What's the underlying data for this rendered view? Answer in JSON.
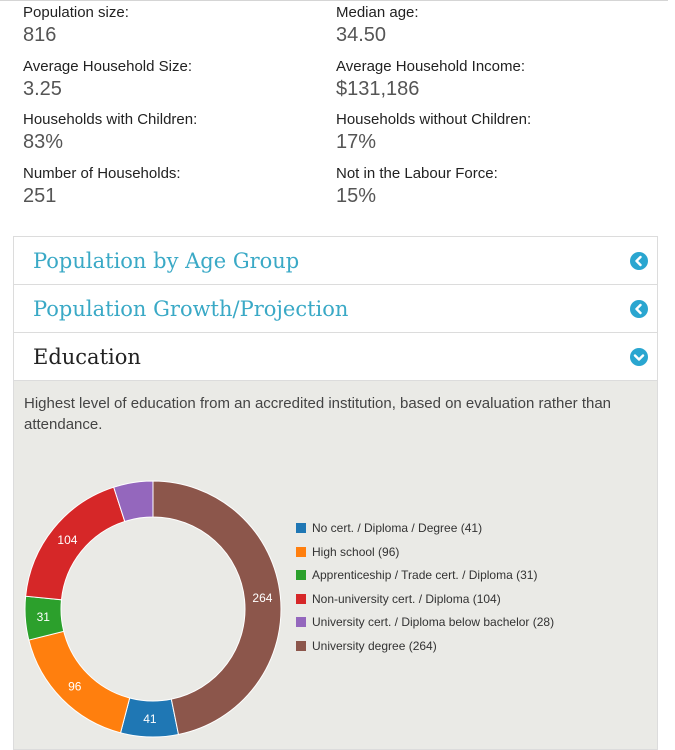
{
  "stats": [
    {
      "label": "Population size:",
      "value": "816"
    },
    {
      "label": "Median age:",
      "value": "34.50"
    },
    {
      "label": "Average Household Size:",
      "value": "3.25"
    },
    {
      "label": "Average Household Income:",
      "value": "$131,186"
    },
    {
      "label": "Households with Children:",
      "value": "83%"
    },
    {
      "label": "Households without Children:",
      "value": "17%"
    },
    {
      "label": "Number of Households:",
      "value": "251"
    },
    {
      "label": "Not in the Labour Force:",
      "value": "15%"
    }
  ],
  "accordion": [
    {
      "title": "Population by Age Group",
      "state": "collapsed",
      "icon": "chevron-left-icon"
    },
    {
      "title": "Population Growth/Projection",
      "state": "collapsed",
      "icon": "chevron-left-icon"
    },
    {
      "title": "Education",
      "state": "expanded",
      "icon": "chevron-down-icon"
    }
  ],
  "education": {
    "description": "Highest level of education from an accredited institution, based on evaluation rather than attendance."
  },
  "colors": {
    "accent": "#3aa9c6",
    "icon": "#2aa6d0",
    "panel_bg": "#eaeae6"
  },
  "chart_data": {
    "type": "pie",
    "donut": true,
    "categories": [
      "No cert. / Diploma / Degree (41)",
      "High school (96)",
      "Apprenticeship / Trade cert. / Diploma (31)",
      "Non-university cert. / Diploma (104)",
      "University cert. / Diploma below bachelor (28)",
      "University degree (264)"
    ],
    "values": [
      41,
      96,
      31,
      104,
      28,
      264
    ],
    "slice_labels": [
      "41",
      "96",
      "31",
      "104",
      "",
      "264"
    ],
    "colors": [
      "#1f77b4",
      "#ff7f0e",
      "#2ca02c",
      "#d62728",
      "#9467bd",
      "#8c564b"
    ],
    "legend_placement": "right"
  }
}
